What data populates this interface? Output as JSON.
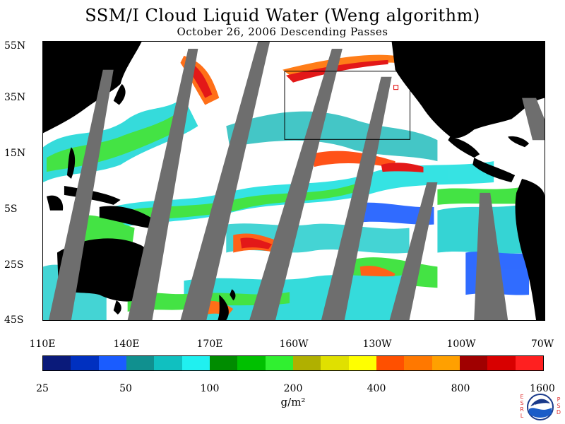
{
  "title": "SSM/I Cloud Liquid Water (Weng algorithm)",
  "subtitle": "October 26, 2006  Descending Passes",
  "lat_labels": [
    "55N",
    "35N",
    "15N",
    "5S",
    "25S",
    "45S"
  ],
  "lon_labels": [
    "110E",
    "140E",
    "170E",
    "160W",
    "130W",
    "100W",
    "70W"
  ],
  "colorbar": {
    "colors": [
      "#0a1a7a",
      "#0030c0",
      "#1a5cff",
      "#10908f",
      "#10c0c0",
      "#20f0f0",
      "#008c00",
      "#00c000",
      "#30f030",
      "#b0b000",
      "#e0e000",
      "#ffff00",
      "#ff5000",
      "#ff7800",
      "#ffa000",
      "#a00000",
      "#d80000",
      "#ff2020"
    ],
    "tick_labels": [
      "25",
      "50",
      "100",
      "200",
      "400",
      "800",
      "1600"
    ],
    "units": "g/m²"
  },
  "legend_colors": {
    "land": "#000000",
    "no_data_swath_gap": "#6e6e6e",
    "clear": "#ffffff"
  },
  "logo": {
    "letters_left": "ESRL",
    "letters_right": "PSD",
    "text": "NOAA"
  }
}
